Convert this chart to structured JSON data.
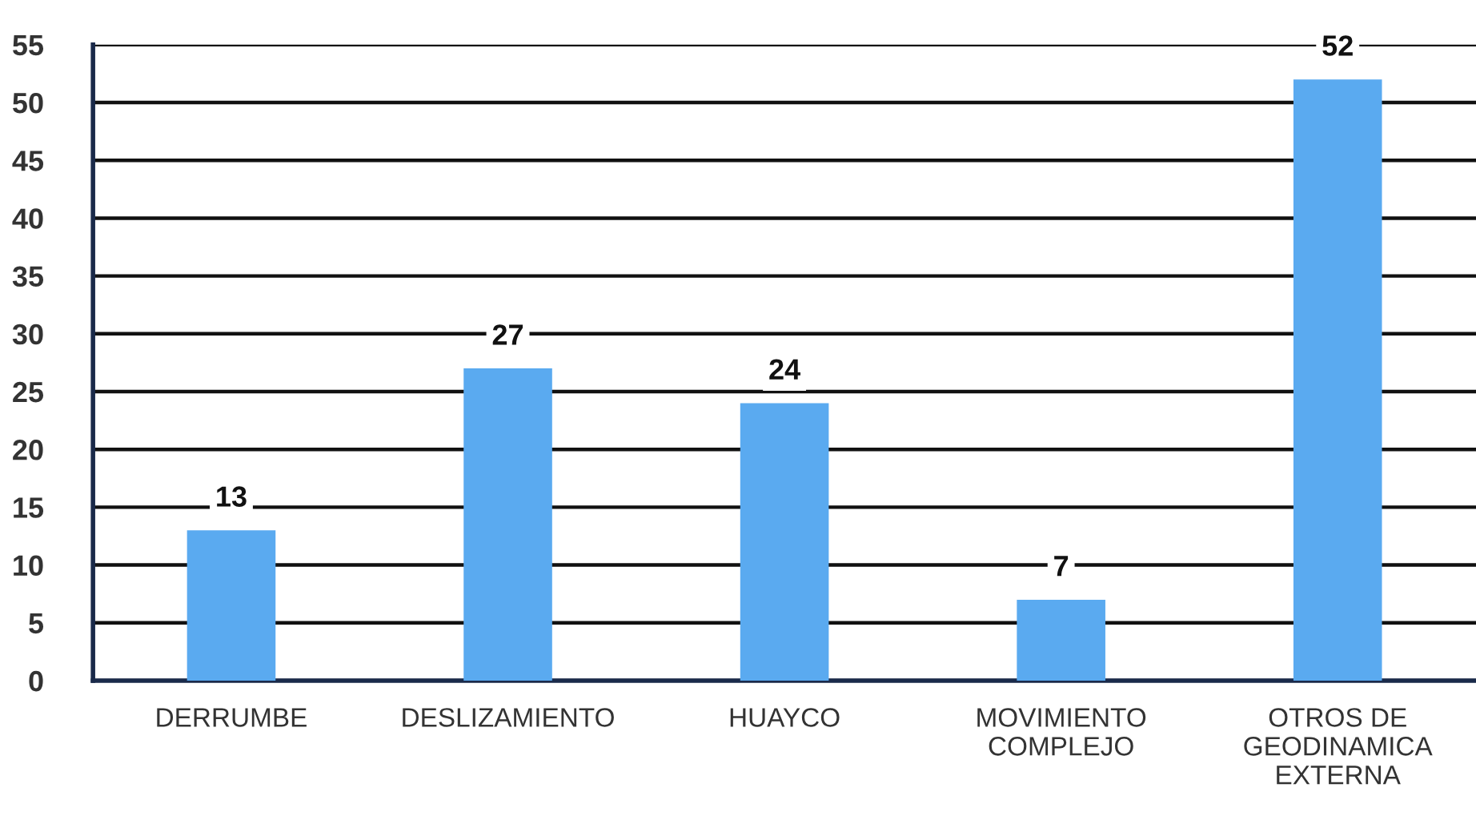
{
  "chart_data": {
    "type": "bar",
    "categories": [
      "DERRUMBE",
      "DESLIZAMIENTO",
      "HUAYCO",
      "MOVIMIENTO\nCOMPLEJO",
      "OTROS DE\nGEODINAMICA\nEXTERNA"
    ],
    "values": [
      13,
      27,
      24,
      7,
      52
    ],
    "color": "#5aaaf0",
    "ylim": [
      0,
      55
    ],
    "yticks": [
      0,
      5,
      10,
      15,
      20,
      25,
      30,
      35,
      40,
      45,
      50,
      55
    ],
    "grid": "y",
    "data_labels": true
  }
}
